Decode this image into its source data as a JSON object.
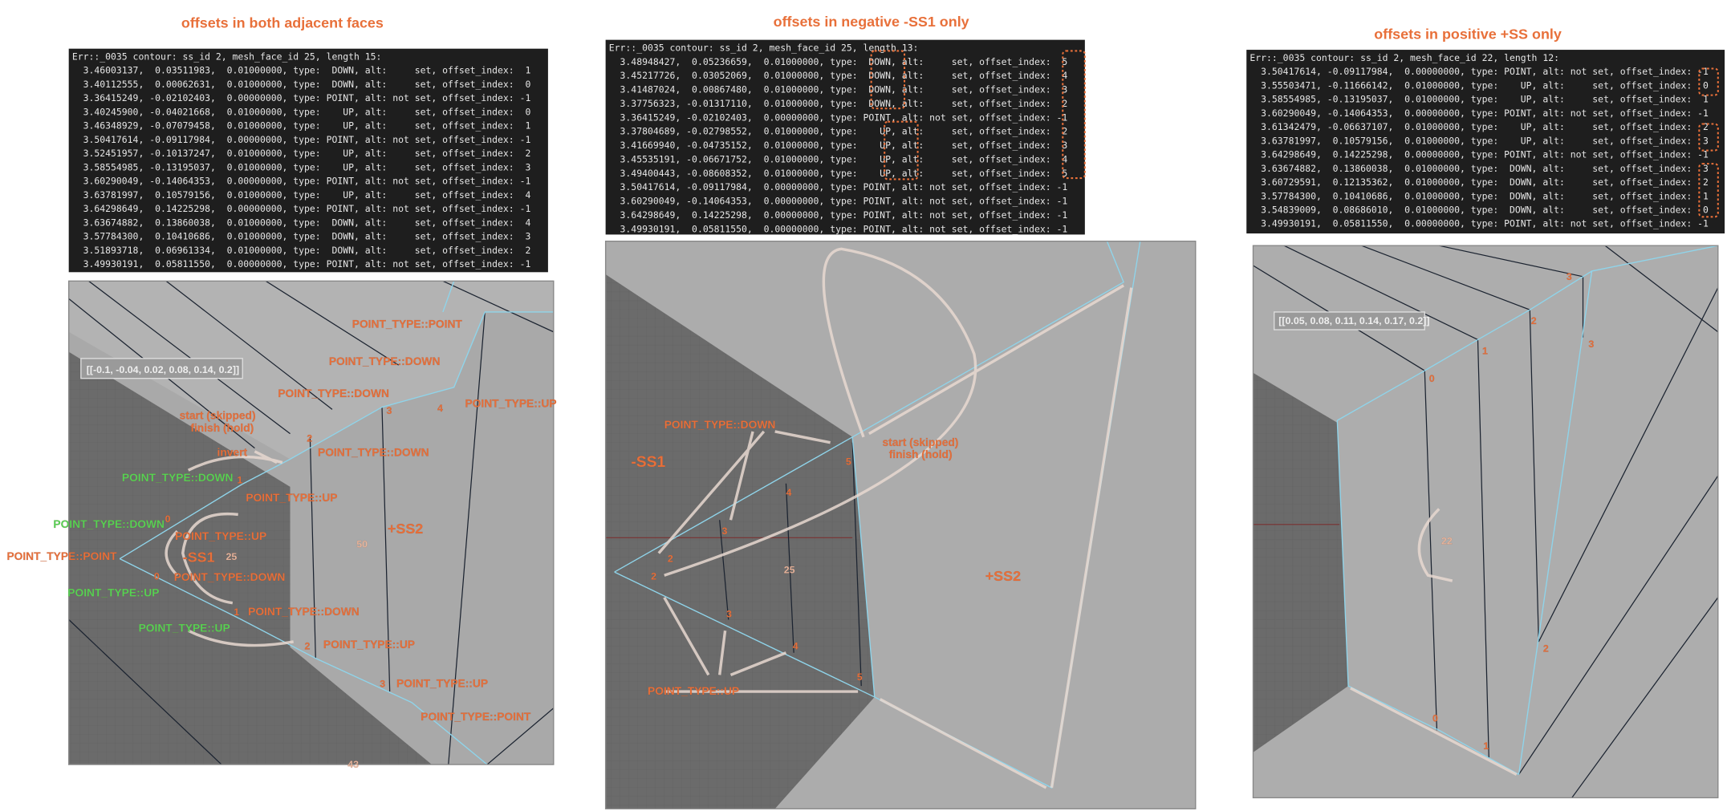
{
  "panels": [
    {
      "title": "offsets in both adjacent faces",
      "console": [
        "Err::_0035 contour: ss_id 2, mesh_face_id 25, length 15:",
        "  3.46003137,  0.03511983,  0.01000000, type:  DOWN, alt:     set, offset_index:  1",
        "  3.40112555,  0.00062631,  0.01000000, type:  DOWN, alt:     set, offset_index:  0",
        "  3.36415249, -0.02102403,  0.00000000, type: POINT, alt: not set, offset_index: -1",
        "  3.40245900, -0.04021668,  0.01000000, type:    UP, alt:     set, offset_index:  0",
        "  3.46348929, -0.07079458,  0.01000000, type:    UP, alt:     set, offset_index:  1",
        "  3.50417614, -0.09117984,  0.00000000, type: POINT, alt: not set, offset_index: -1",
        "  3.52451957, -0.10137247,  0.01000000, type:    UP, alt:     set, offset_index:  2",
        "  3.58554985, -0.13195037,  0.01000000, type:    UP, alt:     set, offset_index:  3",
        "  3.60290049, -0.14064353,  0.00000000, type: POINT, alt: not set, offset_index: -1",
        "  3.63781997,  0.10579156,  0.01000000, type:    UP, alt:     set, offset_index:  4",
        "  3.64298649,  0.14225298,  0.00000000, type: POINT, alt: not set, offset_index: -1",
        "  3.63674882,  0.13860038,  0.01000000, type:  DOWN, alt:     set, offset_index:  4",
        "  3.57784300,  0.10410686,  0.01000000, type:  DOWN, alt:     set, offset_index:  3",
        "  3.51893718,  0.06961334,  0.01000000, type:  DOWN, alt:     set, offset_index:  2",
        "  3.49930191,  0.05811550,  0.00000000, type: POINT, alt: not set, offset_index: -1"
      ],
      "labels": [
        "[[-0.1, -0.04, 0.02, 0.08, 0.14, 0.2]]",
        "POINT_TYPE::POINT",
        "POINT_TYPE::DOWN",
        "POINT_TYPE::DOWN",
        "3",
        "4",
        "POINT_TYPE::UP",
        "start (skipped)",
        "finish (hold)",
        "invert",
        "2",
        "POINT_TYPE::DOWN",
        "POINT_TYPE::DOWN",
        "1",
        "POINT_TYPE::UP",
        "POINT_TYPE::DOWN",
        "0",
        "POINT_TYPE::UP",
        "+SS2",
        "50",
        "POINT_TYPE::POINT",
        "-SS1",
        "25",
        "0",
        "POINT_TYPE::DOWN",
        "POINT_TYPE::UP",
        "1",
        "POINT_TYPE::DOWN",
        "POINT_TYPE::UP",
        "2",
        "POINT_TYPE::UP",
        "3",
        "POINT_TYPE::UP",
        "POINT_TYPE::POINT",
        "43"
      ]
    },
    {
      "title": "offsets in negative -SS1 only",
      "console": [
        "Err::_0035 contour: ss_id 2, mesh_face_id 25, length 13:",
        "  3.48948427,  0.05236659,  0.01000000, type:  DOWN, alt:     set, offset_index:  5",
        "  3.45217726,  0.03052069,  0.01000000, type:  DOWN, alt:     set, offset_index:  4",
        "  3.41487024,  0.00867480,  0.01000000, type:  DOWN, alt:     set, offset_index:  3",
        "  3.37756323, -0.01317110,  0.01000000, type:  DOWN, alt:     set, offset_index:  2",
        "  3.36415249, -0.02102403,  0.00000000, type: POINT, alt: not set, offset_index: -1",
        "  3.37804689, -0.02798552,  0.01000000, type:    UP, alt:     set, offset_index:  2",
        "  3.41669940, -0.04735152,  0.01000000, type:    UP, alt:     set, offset_index:  3",
        "  3.45535191, -0.06671752,  0.01000000, type:    UP, alt:     set, offset_index:  4",
        "  3.49400443, -0.08608352,  0.01000000, type:    UP, alt:     set, offset_index:  5",
        "  3.50417614, -0.09117984,  0.00000000, type: POINT, alt: not set, offset_index: -1",
        "  3.60290049, -0.14064353,  0.00000000, type: POINT, alt: not set, offset_index: -1",
        "  3.64298649,  0.14225298,  0.00000000, type: POINT, alt: not set, offset_index: -1",
        "  3.49930191,  0.05811550,  0.00000000, type: POINT, alt: not set, offset_index: -1"
      ],
      "labels": [
        "POINT_TYPE::DOWN",
        "start (skipped)",
        "finish (hold)",
        "-SS1",
        "5",
        "4",
        "3",
        "2",
        "2",
        "25",
        "+SS2",
        "3",
        "4",
        "5",
        "POINT_TYPE::UP"
      ]
    },
    {
      "title": "offsets in positive +SS only",
      "console": [
        "Err::_0035 contour: ss_id 2, mesh_face_id 22, length 12:",
        "  3.50417614, -0.09117984,  0.00000000, type: POINT, alt: not set, offset_index: -1",
        "  3.55503471, -0.11666142,  0.01000000, type:    UP, alt:     set, offset_index:  0",
        "  3.58554985, -0.13195037,  0.01000000, type:    UP, alt:     set, offset_index:  1",
        "  3.60290049, -0.14064353,  0.00000000, type: POINT, alt: not set, offset_index: -1",
        "  3.61342479, -0.06637107,  0.01000000, type:    UP, alt:     set, offset_index:  2",
        "  3.63781997,  0.10579156,  0.01000000, type:    UP, alt:     set, offset_index:  3",
        "  3.64298649,  0.14225298,  0.00000000, type: POINT, alt: not set, offset_index: -1",
        "  3.63674882,  0.13860038,  0.01000000, type:  DOWN, alt:     set, offset_index:  3",
        "  3.60729591,  0.12135362,  0.01000000, type:  DOWN, alt:     set, offset_index:  2",
        "  3.57784300,  0.10410686,  0.01000000, type:  DOWN, alt:     set, offset_index:  1",
        "  3.54839009,  0.08686010,  0.01000000, type:  DOWN, alt:     set, offset_index:  0",
        "  3.49930191,  0.05811550,  0.00000000, type: POINT, alt: not set, offset_index: -1"
      ],
      "labels": [
        "[[0.05, 0.08, 0.11, 0.14, 0.17, 0.2]]",
        "3",
        "2",
        "1",
        "3",
        "0",
        "22",
        "2",
        "0",
        "1"
      ]
    }
  ]
}
